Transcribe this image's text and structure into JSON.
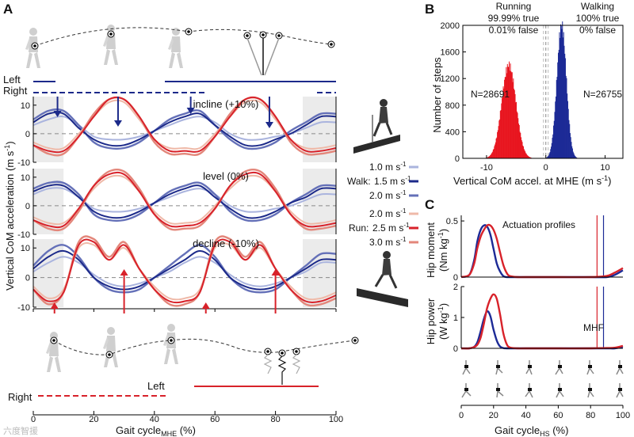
{
  "panelA": {
    "letter": "A",
    "ylabel": "Vertical CoM acceleration (m s",
    "ylabel_sup": "-1",
    "ylabel_end": ")",
    "xlabel_main": "Gait cycle",
    "xlabel_sub": "MHE",
    "xlabel_end": " (%)",
    "xticks": [
      "0",
      "20",
      "40",
      "60",
      "80",
      "100"
    ],
    "yticks": [
      "10",
      "0",
      "-10"
    ],
    "top_left_label": "Left",
    "top_right_label": "Right",
    "bottom_right_label": "Right",
    "bottom_left_label": "Left",
    "conditions": [
      "incline (+10%)",
      "level (0%)",
      "decline (-10%)"
    ],
    "legend": {
      "walk_label": "Walk:",
      "run_label": "Run:",
      "walk_speeds": [
        "1.0 m s",
        "1.5 m s",
        "2.0 m s"
      ],
      "run_speeds": [
        "2.0 m s",
        "2.5 m s",
        "3.0 m s"
      ],
      "unit_sup": "-1"
    },
    "colors": {
      "walk": [
        "#aab4de",
        "#1c2a8a",
        "#6470b8"
      ],
      "run": [
        "#efb9a8",
        "#d8222a",
        "#e3867a"
      ],
      "zero": "#888888",
      "shade": "#ebebeb"
    },
    "chart_data": {
      "type": "line",
      "x": [
        0,
        5,
        10,
        15,
        20,
        25,
        30,
        35,
        40,
        45,
        50,
        55,
        60,
        65,
        70,
        75,
        80,
        85,
        90,
        95,
        100
      ],
      "xlabel": "Gait cycle MHE (%)",
      "ylabel": "Vertical CoM acceleration (m s-1)",
      "xlim": [
        0,
        100
      ],
      "ylim": [
        -10,
        13
      ],
      "panels": [
        {
          "condition": "incline (+10%)",
          "series": [
            {
              "name": "Walk 1.0 m s-1",
              "values": [
                3,
                5,
                6,
                3,
                -1,
                -2,
                -2,
                -1,
                1,
                3,
                5,
                6,
                4,
                0,
                -2,
                -2,
                -1,
                0,
                2,
                4,
                4
              ]
            },
            {
              "name": "Walk 1.5 m s-1",
              "values": [
                4,
                7,
                7,
                2,
                -2,
                -4,
                -4,
                -2,
                1,
                4,
                6,
                7,
                3,
                -1,
                -4,
                -4,
                -2,
                0,
                3,
                6,
                6
              ]
            },
            {
              "name": "Walk 2.0 m s-1",
              "values": [
                5,
                8,
                8,
                3,
                -3,
                -5,
                -5,
                -3,
                1,
                5,
                7,
                8,
                3,
                -2,
                -5,
                -5,
                -3,
                1,
                4,
                7,
                7
              ]
            },
            {
              "name": "Run 2.0 m s-1",
              "values": [
                -3,
                -5,
                -5,
                0,
                6,
                11,
                11,
                5,
                -2,
                -5,
                -5,
                -5,
                0,
                6,
                11,
                11,
                5,
                -2,
                -5,
                -5,
                -4
              ]
            },
            {
              "name": "Run 2.5 m s-1",
              "values": [
                -4,
                -6,
                -6,
                -1,
                6,
                12,
                12,
                6,
                -2,
                -6,
                -6,
                -6,
                -1,
                6,
                12,
                12,
                6,
                -2,
                -6,
                -6,
                -5
              ]
            },
            {
              "name": "Run 3.0 m s-1",
              "values": [
                -4,
                -7,
                -7,
                -1,
                7,
                12,
                12,
                6,
                -3,
                -7,
                -7,
                -7,
                -1,
                7,
                12,
                12,
                6,
                -3,
                -7,
                -7,
                -6
              ]
            }
          ]
        },
        {
          "condition": "level (0%)",
          "series": [
            {
              "name": "Walk 1.0 m s-1",
              "values": [
                4,
                6,
                6,
                3,
                -1,
                -2,
                -2,
                -1,
                1,
                3,
                5,
                6,
                4,
                0,
                -2,
                -2,
                -1,
                0,
                2,
                4,
                4
              ]
            },
            {
              "name": "Walk 1.5 m s-1",
              "values": [
                5,
                7,
                7,
                3,
                -2,
                -4,
                -4,
                -2,
                1,
                4,
                6,
                7,
                3,
                -1,
                -4,
                -4,
                -2,
                1,
                3,
                6,
                6
              ]
            },
            {
              "name": "Walk 2.0 m s-1",
              "values": [
                6,
                8,
                8,
                4,
                -3,
                -5,
                -5,
                -3,
                1,
                5,
                7,
                8,
                4,
                -2,
                -5,
                -5,
                -3,
                1,
                4,
                7,
                7
              ]
            },
            {
              "name": "Run 2.0 m s-1",
              "values": [
                -4,
                -6,
                -6,
                -1,
                6,
                10,
                10,
                5,
                -2,
                -6,
                -6,
                -5,
                0,
                6,
                10,
                10,
                5,
                -2,
                -6,
                -6,
                -5
              ]
            },
            {
              "name": "Run 2.5 m s-1",
              "values": [
                -5,
                -7,
                -7,
                -1,
                7,
                11,
                11,
                5,
                -3,
                -7,
                -7,
                -6,
                -1,
                7,
                11,
                11,
                5,
                -3,
                -7,
                -7,
                -6
              ]
            },
            {
              "name": "Run 3.0 m s-1",
              "values": [
                -5,
                -8,
                -8,
                -2,
                7,
                12,
                12,
                6,
                -3,
                -8,
                -8,
                -7,
                -1,
                7,
                12,
                12,
                6,
                -3,
                -8,
                -8,
                -7
              ]
            }
          ]
        },
        {
          "condition": "decline (-10%)",
          "series": [
            {
              "name": "Walk 1.0 m s-1",
              "values": [
                2,
                5,
                7,
                5,
                1,
                -2,
                -3,
                -2,
                0,
                2,
                5,
                7,
                5,
                1,
                -2,
                -3,
                -2,
                0,
                2,
                5,
                5
              ]
            },
            {
              "name": "Walk 1.5 m s-1",
              "values": [
                3,
                7,
                9,
                6,
                0,
                -3,
                -4,
                -3,
                0,
                3,
                6,
                9,
                6,
                0,
                -3,
                -4,
                -3,
                0,
                3,
                6,
                6
              ]
            },
            {
              "name": "Walk 2.0 m s-1",
              "values": [
                4,
                9,
                11,
                7,
                0,
                -4,
                -5,
                -4,
                0,
                4,
                8,
                11,
                7,
                0,
                -4,
                -5,
                -4,
                0,
                4,
                8,
                8
              ]
            },
            {
              "name": "Run 2.0 m s-1",
              "values": [
                -3,
                -7,
                -4,
                10,
                11,
                6,
                10,
                3,
                -3,
                -7,
                -7,
                -4,
                10,
                11,
                6,
                10,
                3,
                -3,
                -7,
                -7,
                -5
              ]
            },
            {
              "name": "Run 2.5 m s-1",
              "values": [
                -4,
                -8,
                -5,
                11,
                12,
                6,
                11,
                3,
                -4,
                -8,
                -8,
                -5,
                11,
                12,
                6,
                11,
                3,
                -4,
                -8,
                -8,
                -6
              ]
            },
            {
              "name": "Run 3.0 m s-1",
              "values": [
                -4,
                -9,
                -5,
                12,
                13,
                7,
                12,
                3,
                -4,
                -9,
                -9,
                -5,
                12,
                13,
                7,
                12,
                3,
                -4,
                -9,
                -9,
                -7
              ]
            }
          ]
        }
      ]
    }
  },
  "panelB": {
    "letter": "B",
    "ylabel": "Number of steps",
    "xlabel": "Vertical CoM accel. at MHE (m s",
    "xlabel_sup": "-1",
    "xlabel_end": ")",
    "yticks": [
      "0",
      "400",
      "800",
      "1200",
      "1600",
      "2000"
    ],
    "xticks": [
      "-10",
      "0",
      "10"
    ],
    "running": {
      "title": "Running",
      "true_line": "99.99% true",
      "false_line": "0.01% false",
      "n": "N=28691",
      "color": "#e8141e"
    },
    "walking": {
      "title": "Walking",
      "true_line": "100% true",
      "false_line": "0% false",
      "n": "N=26755",
      "color": "#1c2a96"
    },
    "chart_data": {
      "type": "bar",
      "xlim": [
        -14,
        13
      ],
      "ylim": [
        0,
        2000
      ],
      "series": [
        {
          "name": "Running",
          "center": -6.3,
          "sd": 1.2,
          "peak": 1400,
          "bin_width": 0.1
        },
        {
          "name": "Walking",
          "center": 2.6,
          "sd": 0.8,
          "peak": 2000,
          "bin_width": 0.1
        }
      ]
    }
  },
  "panelC": {
    "letter": "C",
    "title": "Actuation profiles",
    "mhf_label": "MHF",
    "ylabel_top": "Hip moment",
    "ylabel_top_units": "(Nm kg",
    "ylabel_top_sup": "-1",
    "ylabel_top_end": ")",
    "ylabel_bot": "Hip power",
    "ylabel_bot_units": "(W kg",
    "ylabel_bot_sup": "-1",
    "ylabel_bot_end": ")",
    "yticks_top": [
      "0",
      "0.5"
    ],
    "yticks_bot": [
      "0",
      "1",
      "2"
    ],
    "xticks": [
      "0",
      "20",
      "40",
      "60",
      "80",
      "100"
    ],
    "xlabel_main": "Gait cycle",
    "xlabel_sub": "HS",
    "xlabel_end": " (%)",
    "chart_data": {
      "type": "line",
      "x": [
        0,
        5,
        8,
        10,
        12,
        14,
        16,
        18,
        20,
        22,
        24,
        26,
        28,
        30,
        35,
        40,
        60,
        80,
        90,
        95,
        100
      ],
      "moment": {
        "ylim": [
          0,
          0.55
        ],
        "series": [
          {
            "name": "Walking",
            "values": [
              0,
              0.02,
              0.15,
              0.32,
              0.42,
              0.46,
              0.45,
              0.38,
              0.25,
              0.12,
              0.05,
              0.01,
              0,
              0,
              0,
              0,
              0,
              0,
              0,
              0.02,
              0.06
            ]
          },
          {
            "name": "Running",
            "values": [
              0,
              0.02,
              0.12,
              0.26,
              0.36,
              0.42,
              0.46,
              0.46,
              0.42,
              0.34,
              0.22,
              0.11,
              0.04,
              0.01,
              0,
              0,
              0,
              0,
              0.01,
              0.04,
              0.08
            ]
          }
        ]
      },
      "power": {
        "ylim": [
          0,
          2
        ],
        "series": [
          {
            "name": "Walking",
            "values": [
              0,
              0,
              0.05,
              0.2,
              0.55,
              0.95,
              1.2,
              1.05,
              0.6,
              0.25,
              0.06,
              0.01,
              0,
              0,
              0,
              0,
              0,
              0,
              0,
              0,
              0.05
            ]
          },
          {
            "name": "Running",
            "values": [
              0,
              0,
              0.04,
              0.12,
              0.35,
              0.8,
              1.3,
              1.6,
              1.75,
              1.6,
              1.1,
              0.5,
              0.15,
              0.03,
              0,
              0,
              0,
              0,
              0.01,
              0.02,
              0.08
            ]
          }
        ]
      },
      "mhf_running": 84,
      "mhf_walking": 88
    }
  },
  "watermark": "六度智援"
}
